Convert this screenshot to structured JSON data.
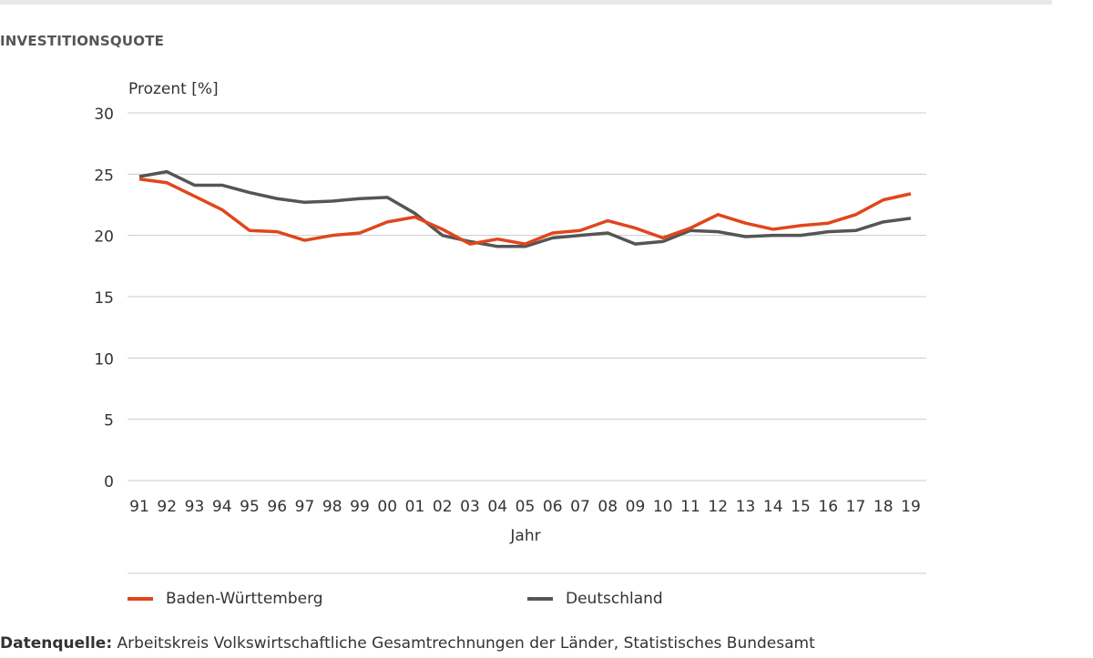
{
  "title": "INVESTITIONSQUOTE",
  "source_label": "Datenquelle:",
  "source_text": "Arbeitskreis Volkswirtschaftliche Gesamtrechnungen der Länder, Statistisches Bundesamt",
  "chart_data": {
    "type": "line",
    "ylabel": "Prozent [%]",
    "xlabel": "Jahr",
    "ylim": [
      0,
      30
    ],
    "yticks": [
      0,
      5,
      10,
      15,
      20,
      25,
      30
    ],
    "grid": true,
    "legend": "bottom",
    "categories": [
      "91",
      "92",
      "93",
      "94",
      "95",
      "96",
      "97",
      "98",
      "99",
      "00",
      "01",
      "02",
      "03",
      "04",
      "05",
      "06",
      "07",
      "08",
      "09",
      "10",
      "11",
      "12",
      "13",
      "14",
      "15",
      "16",
      "17",
      "18",
      "19"
    ],
    "series": [
      {
        "name": "Baden-Württemberg",
        "color": "#e0461b",
        "values": [
          24.6,
          24.3,
          23.2,
          22.1,
          20.4,
          20.3,
          19.6,
          20.0,
          20.2,
          21.1,
          21.5,
          20.5,
          19.3,
          19.7,
          19.3,
          20.2,
          20.4,
          21.2,
          20.6,
          19.8,
          20.6,
          21.7,
          21.0,
          20.5,
          20.8,
          21.0,
          21.7,
          22.9,
          23.4
        ]
      },
      {
        "name": "Deutschland",
        "color": "#555555",
        "values": [
          24.8,
          25.2,
          24.1,
          24.1,
          23.5,
          23.0,
          22.7,
          22.8,
          23.0,
          23.1,
          21.8,
          20.0,
          19.5,
          19.1,
          19.1,
          19.8,
          20.0,
          20.2,
          19.3,
          19.5,
          20.4,
          20.3,
          19.9,
          20.0,
          20.0,
          20.3,
          20.4,
          21.1,
          21.4
        ]
      }
    ]
  }
}
